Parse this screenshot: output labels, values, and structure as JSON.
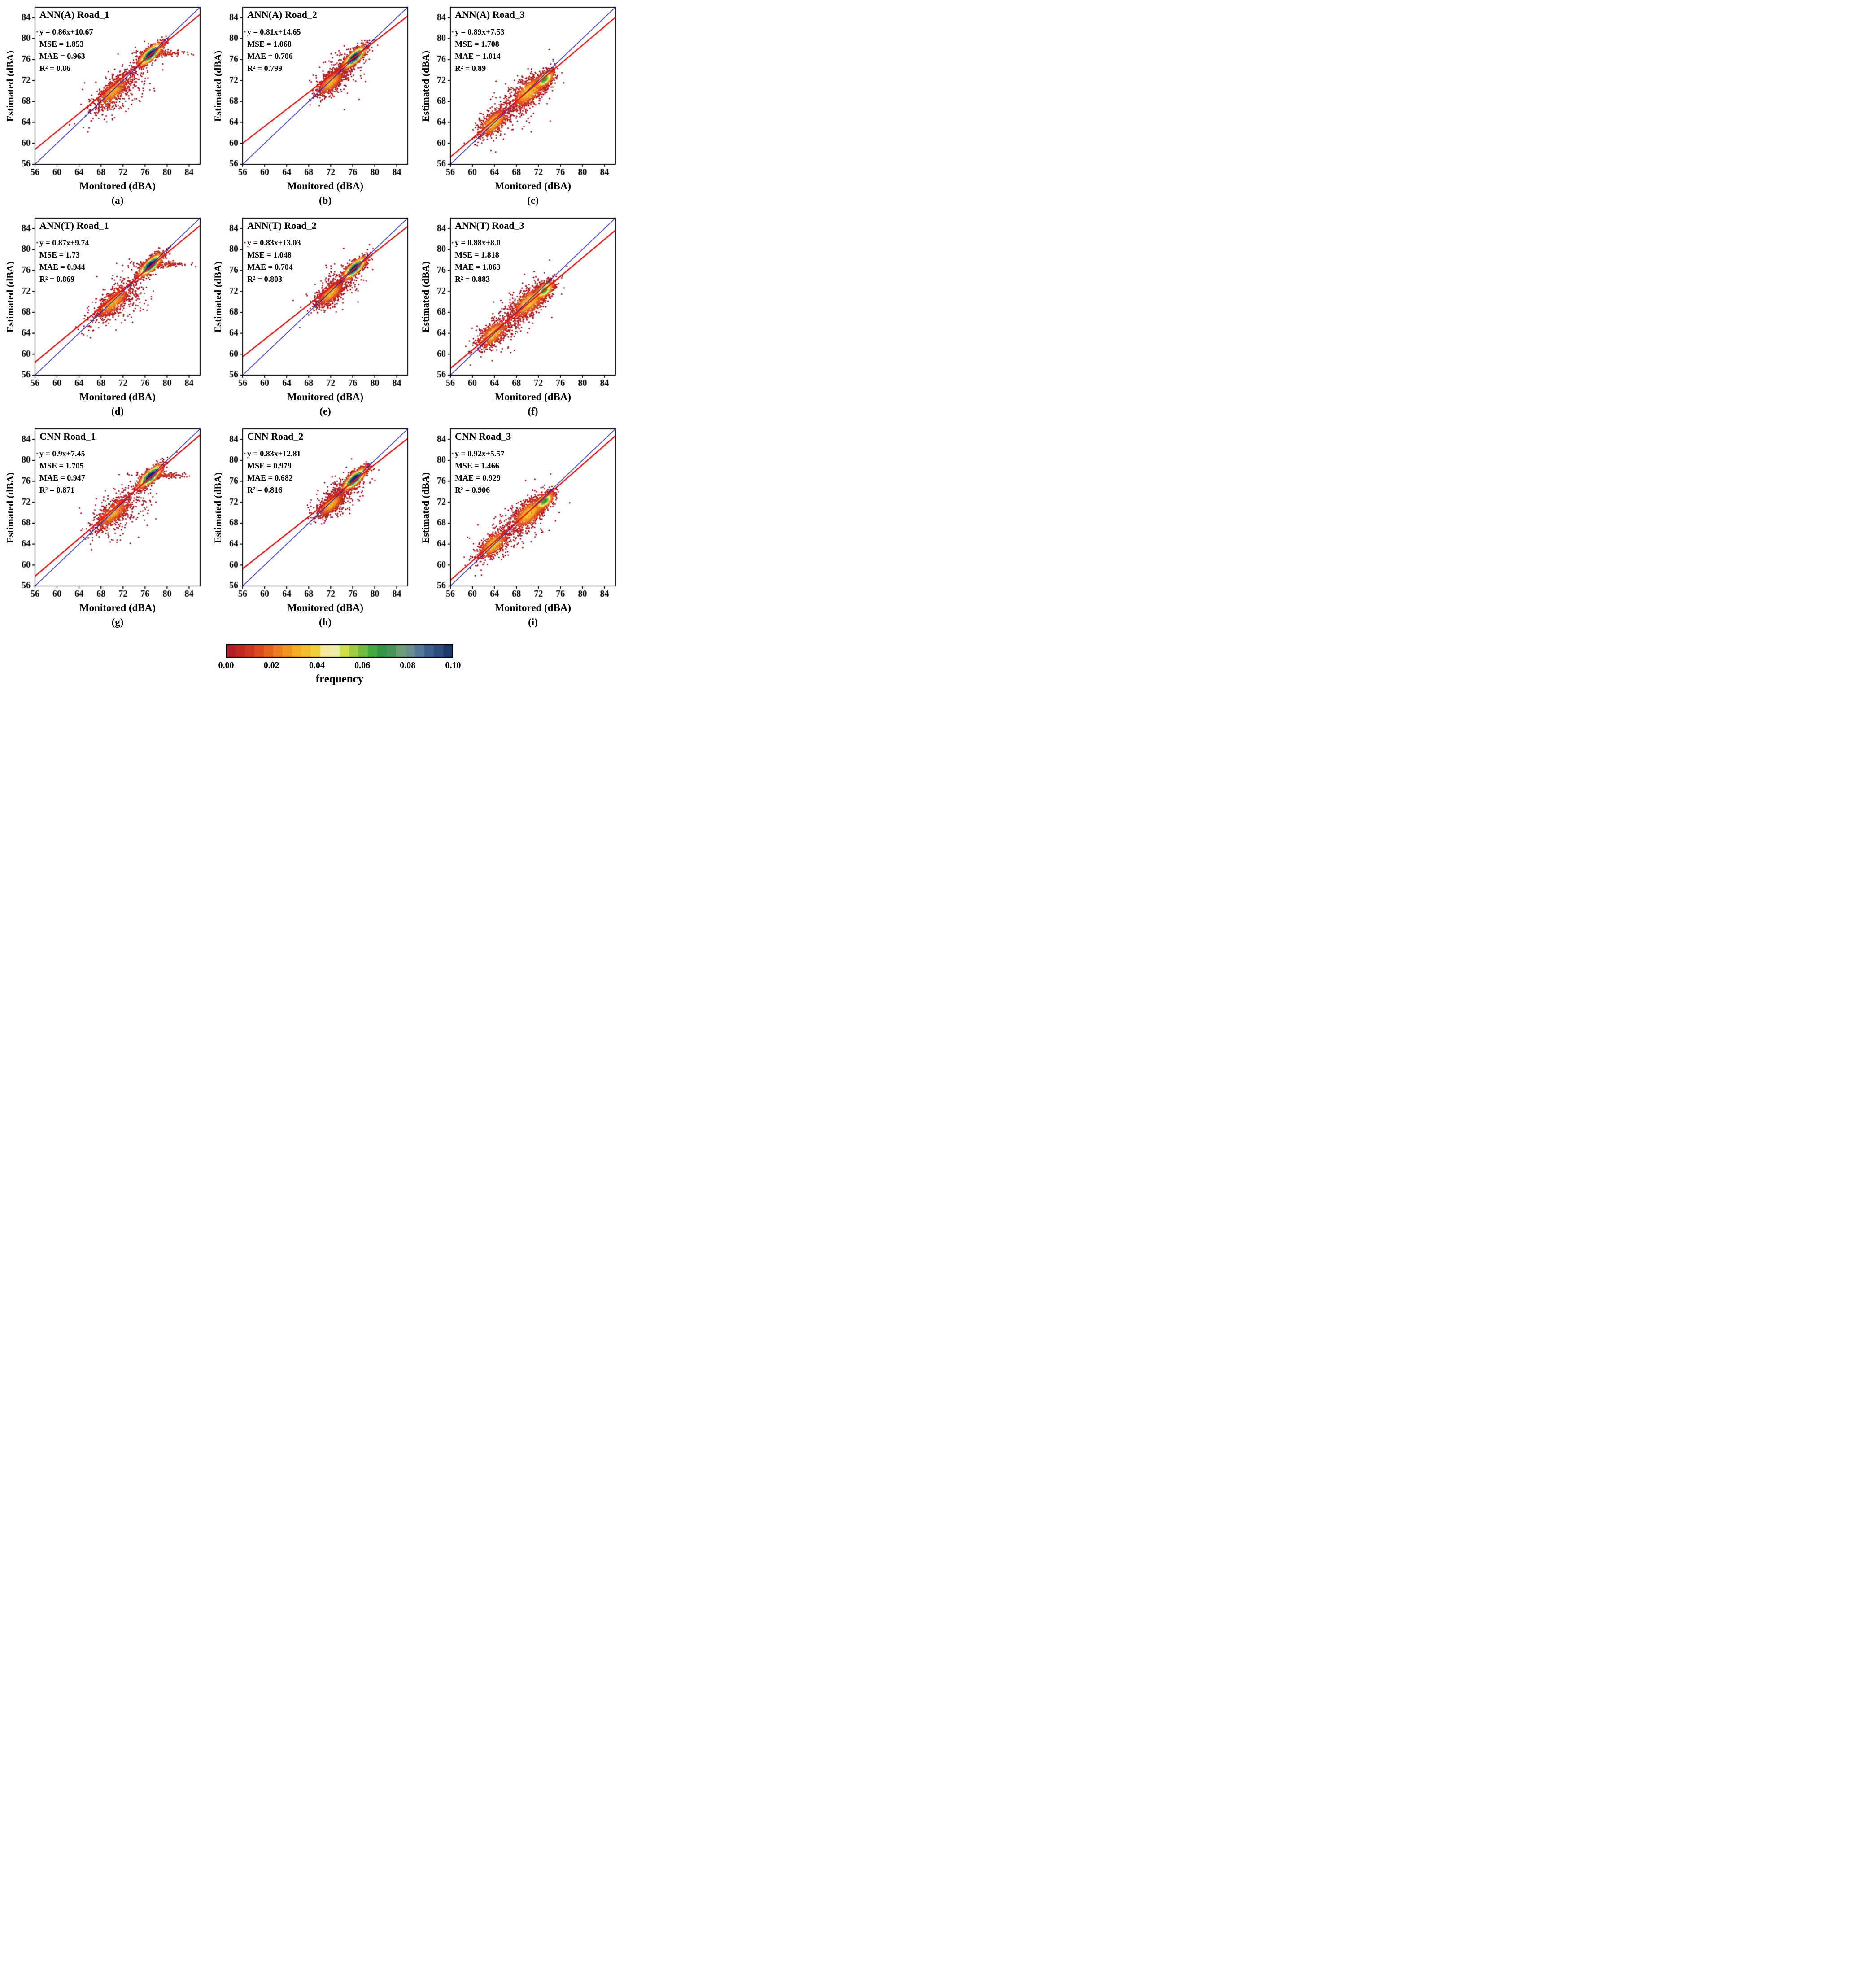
{
  "chart_data": {
    "type": "scatter",
    "xlabel": "Monitored (dBA)",
    "ylabel": "Estimated (dBA)",
    "xlim": [
      56,
      86
    ],
    "ylim": [
      56,
      86
    ],
    "xticks": [
      56,
      60,
      64,
      68,
      72,
      76,
      80,
      84
    ],
    "yticks": [
      56,
      60,
      64,
      68,
      72,
      76,
      80,
      84
    ],
    "identity_line_color": "#1818cc",
    "fit_line_color": "#ea1510",
    "point_radius": 1.8,
    "colorbar": {
      "label": "frequency",
      "ticks": [
        "0.00",
        "0.02",
        "0.04",
        "0.06",
        "0.08",
        "0.10"
      ],
      "vmin": 0.0,
      "vmax": 0.1,
      "segments": 24
    },
    "colormap_stops": [
      [
        0.0,
        "#a81b2b"
      ],
      [
        0.08,
        "#c62a20"
      ],
      [
        0.16,
        "#e0521f"
      ],
      [
        0.24,
        "#ef8420"
      ],
      [
        0.32,
        "#f3b122"
      ],
      [
        0.4,
        "#eed23c"
      ],
      [
        0.46,
        "#faf5d7"
      ],
      [
        0.52,
        "#cfe04a"
      ],
      [
        0.58,
        "#8cc63f"
      ],
      [
        0.64,
        "#45ac41"
      ],
      [
        0.7,
        "#2e9049"
      ],
      [
        0.78,
        "#74a07d"
      ],
      [
        0.84,
        "#5d7f9a"
      ],
      [
        0.9,
        "#3a5e8c"
      ],
      [
        1.0,
        "#152e66"
      ]
    ],
    "panels": [
      {
        "label": "(a)",
        "title": "ANN(A) Road_1",
        "equation": "y = 0.86x+10.67",
        "mse": "MSE = 1.853",
        "mae": "MAE = 0.963",
        "r2": "R² = 0.86",
        "slope": 0.86,
        "intercept": 10.67,
        "road": "Road_1"
      },
      {
        "label": "(b)",
        "title": "ANN(A) Road_2",
        "equation": "y = 0.81x+14.65",
        "mse": "MSE = 1.068",
        "mae": "MAE = 0.706",
        "r2": "R² = 0.799",
        "slope": 0.81,
        "intercept": 14.65,
        "road": "Road_2"
      },
      {
        "label": "(c)",
        "title": "ANN(A) Road_3",
        "equation": "y = 0.89x+7.53",
        "mse": "MSE = 1.708",
        "mae": "MAE = 1.014",
        "r2": "R² = 0.89",
        "slope": 0.89,
        "intercept": 7.53,
        "road": "Road_3"
      },
      {
        "label": "(d)",
        "title": "ANN(T) Road_1",
        "equation": "y = 0.87x+9.74",
        "mse": "MSE = 1.73",
        "mae": "MAE = 0.944",
        "r2": "R² = 0.869",
        "slope": 0.87,
        "intercept": 9.74,
        "road": "Road_1"
      },
      {
        "label": "(e)",
        "title": "ANN(T) Road_2",
        "equation": "y = 0.83x+13.03",
        "mse": "MSE = 1.048",
        "mae": "MAE = 0.704",
        "r2": "R² = 0.803",
        "slope": 0.83,
        "intercept": 13.03,
        "road": "Road_2"
      },
      {
        "label": "(f)",
        "title": "ANN(T) Road_3",
        "equation": "y = 0.88x+8.0",
        "mse": "MSE = 1.818",
        "mae": "MAE = 1.063",
        "r2": "R² = 0.883",
        "slope": 0.88,
        "intercept": 8.0,
        "road": "Road_3"
      },
      {
        "label": "(g)",
        "title": "CNN Road_1",
        "equation": "y = 0.9x+7.45",
        "mse": "MSE = 1.705",
        "mae": "MAE = 0.947",
        "r2": "R² = 0.871",
        "slope": 0.9,
        "intercept": 7.45,
        "road": "Road_1"
      },
      {
        "label": "(h)",
        "title": "CNN Road_2",
        "equation": "y = 0.83x+12.81",
        "mse": "MSE = 0.979",
        "mae": "MAE = 0.682",
        "r2": "R² = 0.816",
        "slope": 0.83,
        "intercept": 12.81,
        "road": "Road_2"
      },
      {
        "label": "(i)",
        "title": "CNN Road_3",
        "equation": "y = 0.92x+5.57",
        "mse": "MSE = 1.466",
        "mae": "MAE = 0.929",
        "r2": "R² = 0.906",
        "slope": 0.92,
        "intercept": 5.57,
        "road": "Road_3"
      }
    ],
    "roads": {
      "Road_1": {
        "clusters": [
          {
            "type": "diag",
            "n": 650,
            "cx": 70.2,
            "cy": 69.9,
            "along": 2.3,
            "perp": 0.85,
            "peak": 0.028
          },
          {
            "type": "diag",
            "n": 1150,
            "cx": 77.0,
            "cy": 77.0,
            "along": 1.55,
            "perp": 0.5,
            "peak": 0.1
          },
          {
            "type": "xstreak",
            "n": 150,
            "cx": 78.6,
            "cy": 77.2,
            "sx": 2.4,
            "sy": 0.3,
            "peak": 0.012
          },
          {
            "type": "diag",
            "n": 270,
            "cx": 71.3,
            "cy": 70.2,
            "along": 3.6,
            "perp": 1.9,
            "peak": 0.004
          }
        ],
        "extra_points": [
          [
            56.4,
            81.3
          ]
        ]
      },
      "Road_2": {
        "clusters": [
          {
            "type": "diag",
            "n": 750,
            "cx": 72.0,
            "cy": 71.6,
            "along": 1.7,
            "perp": 0.7,
            "peak": 0.03
          },
          {
            "type": "diag",
            "n": 1150,
            "cx": 76.3,
            "cy": 76.4,
            "along": 1.5,
            "perp": 0.5,
            "peak": 0.1
          },
          {
            "type": "diag",
            "n": 280,
            "cx": 73.6,
            "cy": 73.2,
            "along": 3.0,
            "perp": 1.5,
            "peak": 0.005
          }
        ],
        "extra_points": [
          [
            56.4,
            81.3
          ]
        ]
      },
      "Road_3": {
        "clusters": [
          {
            "type": "diag",
            "n": 650,
            "cx": 63.8,
            "cy": 63.9,
            "along": 1.9,
            "perp": 0.85,
            "peak": 0.034
          },
          {
            "type": "diag",
            "n": 850,
            "cx": 70.3,
            "cy": 69.9,
            "along": 2.2,
            "perp": 1.0,
            "peak": 0.034
          },
          {
            "type": "diag",
            "n": 650,
            "cx": 73.1,
            "cy": 72.2,
            "along": 1.15,
            "perp": 0.55,
            "peak": 0.062
          },
          {
            "type": "diag",
            "n": 300,
            "cx": 67.8,
            "cy": 67.4,
            "along": 4.4,
            "perp": 1.8,
            "peak": 0.005
          }
        ],
        "extra_points": [
          [
            56.4,
            81.3
          ]
        ]
      }
    }
  }
}
